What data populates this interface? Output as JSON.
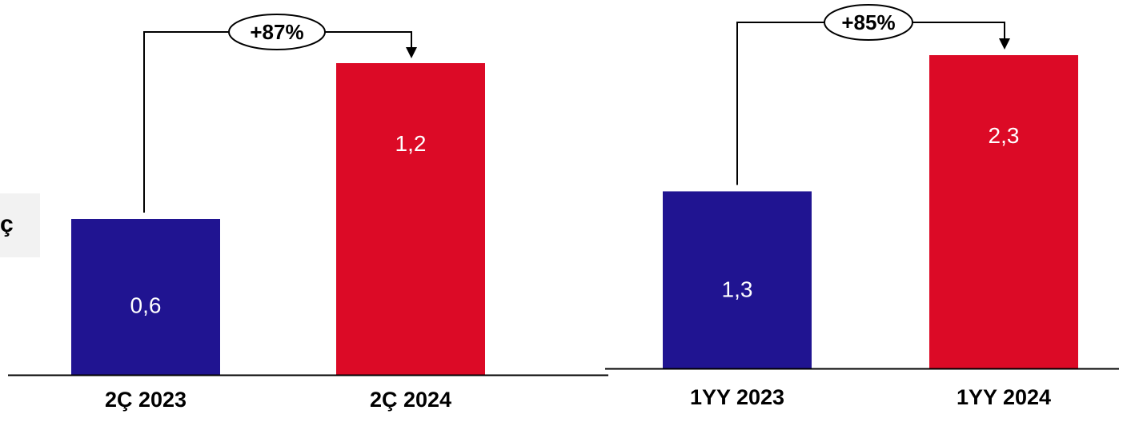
{
  "side_tab": {
    "label": "ç"
  },
  "colors": {
    "base": "#201491",
    "current": "#dc0a26",
    "axis": "#000000",
    "grid": "#ffffff"
  },
  "chart_data": [
    {
      "type": "bar",
      "categories": [
        "2Ç 2023",
        "2Ç 2024"
      ],
      "values": [
        0.6,
        1.2
      ],
      "labels": [
        "0,6",
        "1,2"
      ],
      "change_label": "+87%",
      "ylim": [
        0,
        1.4
      ],
      "grid": false,
      "xlabel": "",
      "ylabel": ""
    },
    {
      "type": "bar",
      "categories": [
        "1YY 2023",
        "1YY 2024"
      ],
      "values": [
        1.3,
        2.3
      ],
      "labels": [
        "1,3",
        "2,3"
      ],
      "change_label": "+85%",
      "ylim": [
        0,
        2.6
      ],
      "grid": false,
      "xlabel": "",
      "ylabel": ""
    }
  ]
}
